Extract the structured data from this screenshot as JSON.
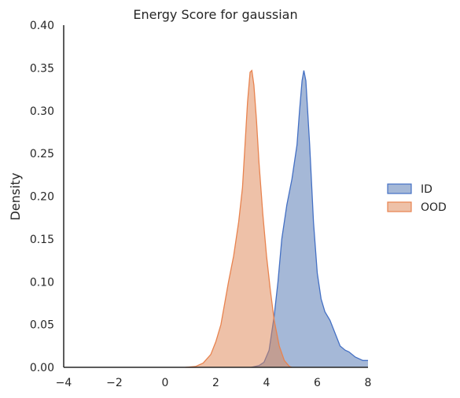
{
  "chart_data": {
    "type": "area",
    "title": "Energy Score for gaussian",
    "xlabel": "",
    "ylabel": "Density",
    "xlim": [
      -4,
      8
    ],
    "ylim": [
      0,
      0.4
    ],
    "x_ticks": [
      -4,
      -2,
      0,
      2,
      4,
      6,
      8
    ],
    "x_tick_labels": [
      "−4",
      "−2",
      "0",
      "2",
      "4",
      "6",
      "8"
    ],
    "y_ticks": [
      0,
      0.05,
      0.1,
      0.15,
      0.2,
      0.25,
      0.3,
      0.35,
      0.4
    ],
    "y_tick_labels": [
      "0.00",
      "0.05",
      "0.10",
      "0.15",
      "0.20",
      "0.25",
      "0.30",
      "0.35",
      "0.40"
    ],
    "grid": false,
    "legend_position": "right",
    "series": [
      {
        "name": "ID",
        "fill_color": "#4c72b0",
        "line_color": "#4470c4",
        "points": [
          [
            3.4,
            0.0
          ],
          [
            3.7,
            0.002
          ],
          [
            3.9,
            0.006
          ],
          [
            4.1,
            0.02
          ],
          [
            4.3,
            0.06
          ],
          [
            4.45,
            0.1
          ],
          [
            4.6,
            0.15
          ],
          [
            4.8,
            0.19
          ],
          [
            5.0,
            0.22
          ],
          [
            5.2,
            0.26
          ],
          [
            5.3,
            0.3
          ],
          [
            5.4,
            0.335
          ],
          [
            5.47,
            0.347
          ],
          [
            5.55,
            0.335
          ],
          [
            5.7,
            0.26
          ],
          [
            5.85,
            0.17
          ],
          [
            6.0,
            0.11
          ],
          [
            6.15,
            0.08
          ],
          [
            6.3,
            0.065
          ],
          [
            6.5,
            0.055
          ],
          [
            6.7,
            0.04
          ],
          [
            6.9,
            0.025
          ],
          [
            7.1,
            0.02
          ],
          [
            7.25,
            0.018
          ],
          [
            7.5,
            0.012
          ],
          [
            7.8,
            0.008
          ],
          [
            8.0,
            0.008
          ]
        ]
      },
      {
        "name": "OOD",
        "fill_color": "#dd8452",
        "line_color": "#e8834f",
        "points": [
          [
            0.8,
            0.0
          ],
          [
            1.2,
            0.001
          ],
          [
            1.5,
            0.005
          ],
          [
            1.8,
            0.015
          ],
          [
            2.0,
            0.03
          ],
          [
            2.2,
            0.05
          ],
          [
            2.35,
            0.075
          ],
          [
            2.5,
            0.1
          ],
          [
            2.7,
            0.13
          ],
          [
            2.9,
            0.17
          ],
          [
            3.05,
            0.21
          ],
          [
            3.15,
            0.26
          ],
          [
            3.25,
            0.31
          ],
          [
            3.35,
            0.345
          ],
          [
            3.42,
            0.347
          ],
          [
            3.5,
            0.33
          ],
          [
            3.6,
            0.29
          ],
          [
            3.7,
            0.24
          ],
          [
            3.85,
            0.18
          ],
          [
            4.0,
            0.13
          ],
          [
            4.15,
            0.09
          ],
          [
            4.3,
            0.055
          ],
          [
            4.5,
            0.025
          ],
          [
            4.7,
            0.008
          ],
          [
            4.9,
            0.001
          ],
          [
            5.0,
            0.0
          ]
        ]
      }
    ]
  }
}
